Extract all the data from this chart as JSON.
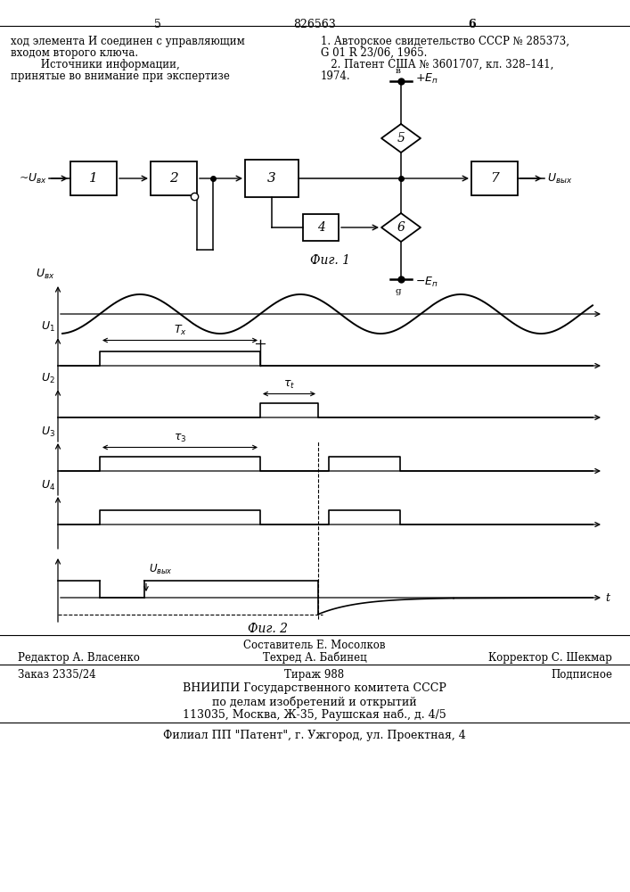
{
  "page_num_left": "5",
  "page_num_center": "826563",
  "page_num_right": "6",
  "text_left_col": [
    "ход элемента И соединен с управляющим",
    "входом второго ключа.",
    "         Источники информации,",
    "принятые во внимание при экспертизе"
  ],
  "text_right_col": [
    "1. Авторское свидетельство СССР № 285373,",
    "G 01 R 23/06, 1965.",
    "   2. Патент США № 3601707, кл. 328–141,",
    "1974."
  ],
  "fig1_label": "Фиг. 1",
  "fig2_label": "Фиг. 2",
  "footer_line1": "Составитель Е. Мосолков",
  "footer_line2_left": "Редактор А. Власенко",
  "footer_line2_mid": "Техред А. Бабинец",
  "footer_line2_right": "Корректор С. Шекмар",
  "footer_line3_left": "Заказ 2335/24",
  "footer_line3_mid": "Тираж 988",
  "footer_line3_right": "Подписное",
  "footer_line4": "ВНИИПИ Государственного комитета СССР",
  "footer_line5": "по делам изобретений и открытий",
  "footer_line6": "113035, Москва, Ж-35, Раушская наб., д. 4/5",
  "footer_line7": "Филиал ПП \"Патент\", г. Ужгород, ул. Проектная, 4"
}
